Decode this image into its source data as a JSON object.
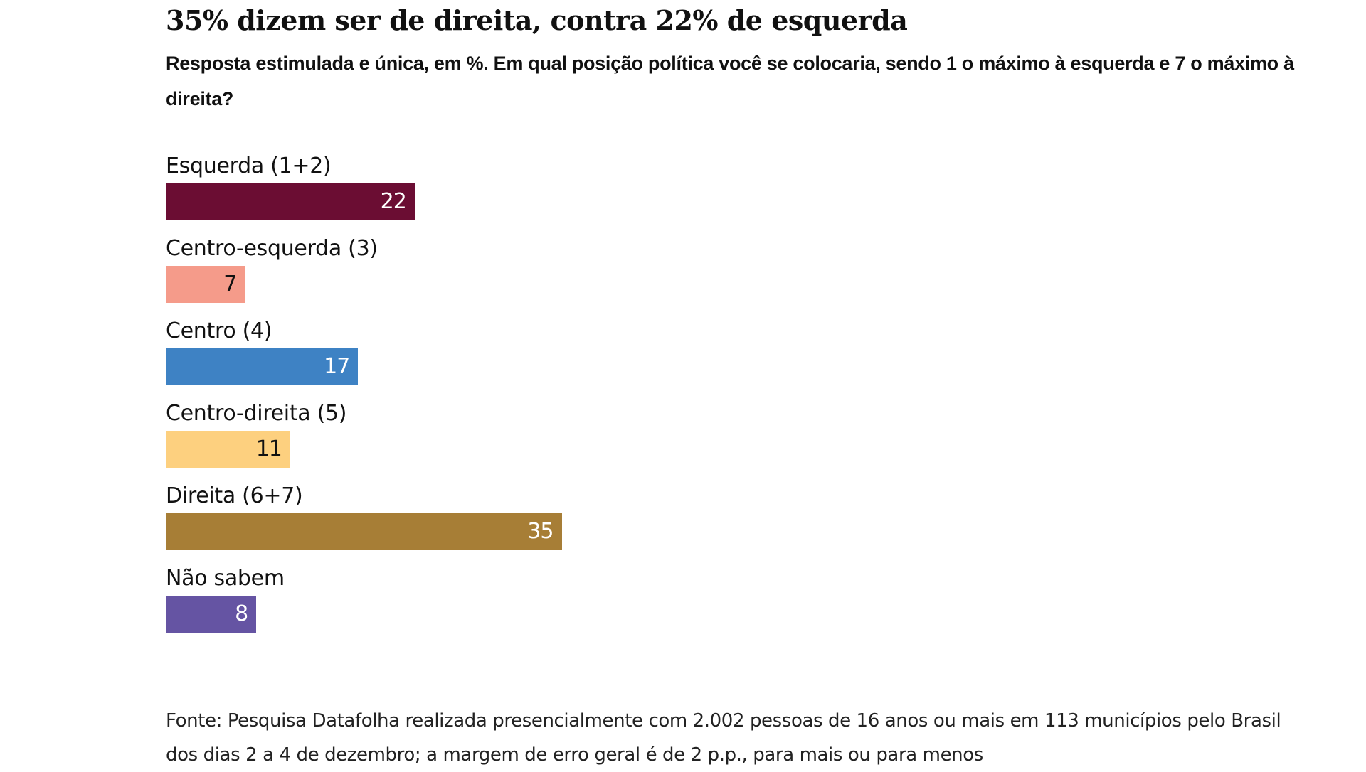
{
  "header": {
    "title": "35% dizem ser de direita, contra 22% de esquerda",
    "subtitle": "Resposta estimulada e única, em %. Em qual posição política você se colocaria, sendo 1 o máximo à esquerda e 7 o máximo à direita?"
  },
  "chart_data": {
    "type": "bar",
    "orientation": "horizontal",
    "title": "35% dizem ser de direita, contra 22% de esquerda",
    "subtitle": "Resposta estimulada e única, em %. Em qual posição política você se colocaria, sendo 1 o máximo à esquerda e 7 o máximo à direita?",
    "xlabel": "",
    "ylabel": "",
    "unit": "%",
    "grid": false,
    "legend": "none",
    "categories": [
      "Esquerda (1+2)",
      "Centro-esquerda (3)",
      "Centro (4)",
      "Centro-direita (5)",
      "Direita (6+7)",
      "Não sabem"
    ],
    "values": [
      22,
      7,
      17,
      11,
      35,
      8
    ],
    "colors": [
      "#6b0d33",
      "#f59b8a",
      "#3e82c4",
      "#fdd07f",
      "#a77e36",
      "#6554a3"
    ],
    "label_colors": [
      "#ffffff",
      "#111111",
      "#ffffff",
      "#111111",
      "#ffffff",
      "#ffffff"
    ],
    "xlim": [
      0,
      100
    ]
  },
  "footer": {
    "source_line1": "Fonte: Pesquisa Datafolha realizada presencialmente com 2.002 pessoas de 16 anos ou mais em 113 municípios pelo Brasil",
    "source_line2": "dos dias 2 a 4 de dezembro; a margem de erro geral é de 2 p.p., para mais ou para menos"
  }
}
